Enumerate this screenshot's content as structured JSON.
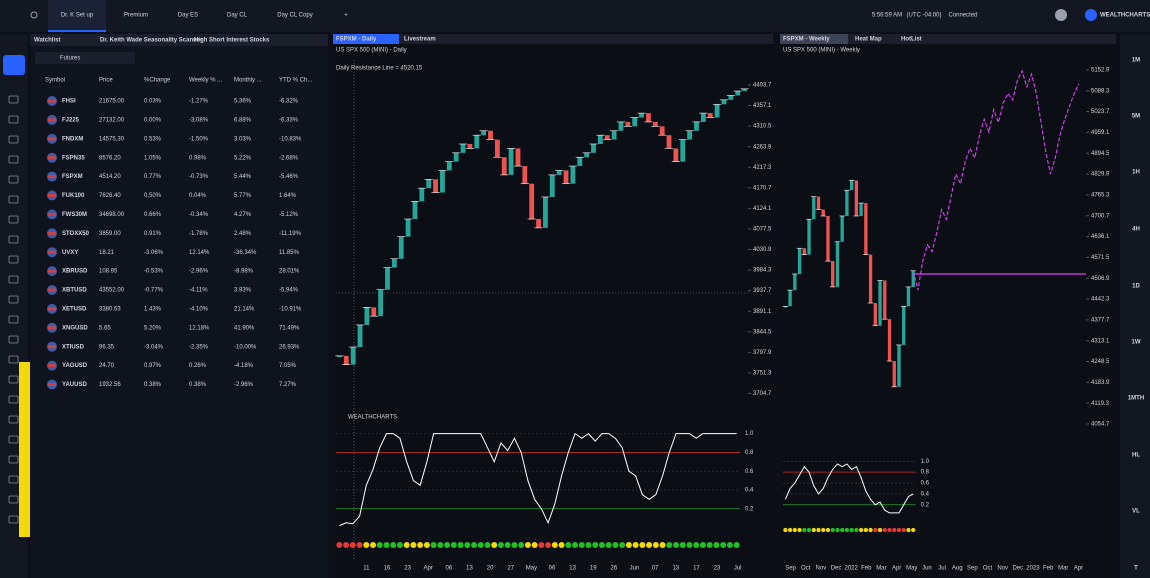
{
  "top_bar": {
    "tabs": [
      "Dr. K Set up",
      "Premium",
      "Day ES",
      "Day CL",
      "Day CL Copy",
      "+"
    ],
    "time": "5:56:59 AM",
    "timezone": "(UTC -04:00)",
    "status": "Connected",
    "brand": "WEALTHCHARTS"
  },
  "watchlist": {
    "tabs": [
      "Watchlist",
      "Dr. Keith Wade Seasonality Scanner",
      "High Short Interest Stocks"
    ],
    "list": "Futures",
    "columns": [
      "Symbol",
      "Price",
      "%Change",
      "Weekly % ...",
      "Monthly ...",
      "YTD % Ch..."
    ],
    "rows": [
      [
        "FHSI",
        "21675.00",
        "0.03%",
        "-1.27%",
        "5.36%",
        "-6.32%"
      ],
      [
        "FJ225",
        "27132.00",
        "0.00%",
        "-3.08%",
        "6.88%",
        "-6.33%"
      ],
      [
        "FNDXM",
        "14575.30",
        "0.53%",
        "-1.50%",
        "3.03%",
        "-10.83%"
      ],
      [
        "FSPN35",
        "8576.20",
        "1.05%",
        "0.98%",
        "5.22%",
        "-2.68%"
      ],
      [
        "FSPXM",
        "4514.20",
        "0.77%",
        "-0.73%",
        "5.44%",
        "-5.46%"
      ],
      [
        "FUK100",
        "7626.40",
        "0.50%",
        "0.04%",
        "5.77%",
        "1.64%"
      ],
      [
        "FWS30M",
        "34698.00",
        "0.66%",
        "-0.34%",
        "4.27%",
        "-5.12%"
      ],
      [
        "STOXX50",
        "3859.00",
        "0.91%",
        "-1.78%",
        "2.48%",
        "-11.19%"
      ],
      [
        "UVXY",
        "18.21",
        "-3.06%",
        "12.14%",
        "-36.34%",
        "11.85%"
      ],
      [
        "XBRUSD",
        "108.95",
        "-0.53%",
        "-2.96%",
        "-8.98%",
        "28.01%"
      ],
      [
        "XBTUSD",
        "43552.00",
        "-0.77%",
        "-4.11%",
        "3.93%",
        "-5.94%"
      ],
      [
        "XETUSD",
        "3380.63",
        "1.43%",
        "-4.10%",
        "21.14%",
        "-10.91%"
      ],
      [
        "XNGUSD",
        "5.65",
        "5.20%",
        "12.18%",
        "41.90%",
        "71.49%"
      ],
      [
        "XTIUSD",
        "96.35",
        "-3.04%",
        "-2.35%",
        "-10.00%",
        "26.93%"
      ],
      [
        "YAGUSD",
        "24.70",
        "0.97%",
        "0.26%",
        "-4.18%",
        "7.05%"
      ],
      [
        "YAUUSD",
        "1932.56",
        "0.38%",
        "0.38%",
        "-2.96%",
        "7.27%"
      ]
    ]
  },
  "daily": {
    "tabs": [
      "FSPXM - Daily",
      "Livestream"
    ],
    "subtitle": "US SPX 500 (MINI) - Daily",
    "annotation": "Daily Resistance Line = 4520.15",
    "brand": "WEALTHCHARTS",
    "ylim": [
      3690,
      4415
    ],
    "yticks": [
      3704.7,
      3751.3,
      3797.9,
      3844.5,
      3891.1,
      3937.7,
      3984.3,
      4030.9,
      4077.5,
      4124.1,
      4170.7,
      4217.3,
      4263.9,
      4310.5,
      4357.1,
      4403.7
    ],
    "closes": [
      3790,
      3770,
      3810,
      3860,
      3900,
      3880,
      3940,
      3990,
      4010,
      4060,
      4100,
      4140,
      4170,
      4190,
      4160,
      4210,
      4230,
      4250,
      4270,
      4260,
      4290,
      4300,
      4280,
      4240,
      4200,
      4260,
      4220,
      4180,
      4100,
      4080,
      4150,
      4200,
      4210,
      4180,
      4220,
      4240,
      4250,
      4270,
      4290,
      4280,
      4300,
      4320,
      4310,
      4330,
      4340,
      4320,
      4310,
      4290,
      4260,
      4230,
      4280,
      4300,
      4320,
      4340,
      4330,
      4360,
      4370,
      4380,
      4390,
      4395
    ],
    "x_labels": [
      "11",
      "16",
      "23",
      "Apr",
      "06",
      "13",
      "20",
      "27",
      "May",
      "06",
      "13",
      "19",
      "26",
      "Jun",
      "07",
      "13",
      "17",
      "23",
      "Jul"
    ],
    "oscillator": {
      "ylim": [
        -0.08,
        1.06
      ],
      "yticks": [
        0.2,
        0.4,
        0.6,
        0.8,
        {
          "value": 1,
          "label": "1.0"
        }
      ],
      "upper_level": 0.8,
      "lower_level": 0.2,
      "values": [
        0.02,
        0.05,
        0.04,
        0.12,
        0.45,
        0.62,
        0.85,
        1,
        1,
        0.95,
        0.7,
        0.5,
        0.45,
        0.7,
        1,
        1,
        1,
        1,
        1,
        1,
        1,
        1,
        0.85,
        0.7,
        0.9,
        0.82,
        0.95,
        0.8,
        0.5,
        0.3,
        0.2,
        0.05,
        0.25,
        0.55,
        0.8,
        1,
        0.95,
        1,
        0.92,
        1,
        1,
        0.95,
        0.85,
        0.6,
        0.55,
        0.35,
        0.3,
        0.35,
        0.55,
        0.8,
        1,
        1,
        1,
        0.95,
        1,
        1,
        1,
        1,
        1,
        1
      ]
    }
  },
  "weekly": {
    "tabs": [
      "FSPXM - Weekly",
      "Heat Map",
      "HotList"
    ],
    "subtitle": "US SPX 500 (MINI) - Weekly",
    "ylim": [
      4030,
      5190
    ],
    "yticks": [
      4054.7,
      4119.3,
      4183.9,
      4248.5,
      4313.1,
      4377.7,
      4442.3,
      4506.9,
      4571.5,
      4636.1,
      4700.7,
      4765.3,
      4829.9,
      4894.5,
      4959.1,
      5023.7,
      5088.3,
      5152.9
    ],
    "closes": [
      4420,
      4470,
      4520,
      4600,
      4580,
      4690,
      4760,
      4720,
      4700,
      4560,
      4480,
      4620,
      4700,
      4780,
      4810,
      4700,
      4740,
      4580,
      4430,
      4360,
      4500,
      4380,
      4250,
      4170,
      4300,
      4420,
      4480,
      4530
    ],
    "projection": [
      4530,
      4470,
      4560,
      4610,
      4590,
      4650,
      4720,
      4690,
      4760,
      4830,
      4800,
      4870,
      4910,
      4880,
      4950,
      5000,
      4960,
      5030,
      4990,
      5050,
      5080,
      5060,
      5120,
      5150,
      5100,
      5140,
      5080,
      4990,
      4900,
      4830,
      4880,
      4950,
      5000,
      5040,
      5080,
      5110
    ],
    "resistance": 4520,
    "x_labels": [
      "Sep",
      "Oct",
      "Nov",
      "Dec",
      "2022",
      "Feb",
      "Mar",
      "Apr",
      "May",
      "Jun",
      "Jul",
      "Aug",
      "Sep",
      "Oct",
      "Nov",
      "Dec",
      "2023",
      "Feb",
      "Mar",
      "Apr"
    ],
    "oscillator": {
      "ylim": [
        -0.08,
        1.06
      ],
      "yticks": [
        0.2,
        0.4,
        0.6,
        0.8,
        {
          "value": 1,
          "label": "1.0"
        }
      ],
      "upper_level": 0.8,
      "lower_level": 0.2,
      "values": [
        0.3,
        0.5,
        0.6,
        0.75,
        0.9,
        0.8,
        0.55,
        0.4,
        0.5,
        0.7,
        0.85,
        0.95,
        0.9,
        0.95,
        0.85,
        0.9,
        0.7,
        0.45,
        0.3,
        0.2,
        0.25,
        0.1,
        0.05,
        0.05,
        0.05,
        0.2,
        0.35,
        0.4
      ]
    }
  },
  "timeframes": [
    "1M",
    "5M",
    "1H",
    "4H",
    "1D",
    "1W",
    "1MTH",
    "HL",
    "VL",
    "T"
  ]
}
